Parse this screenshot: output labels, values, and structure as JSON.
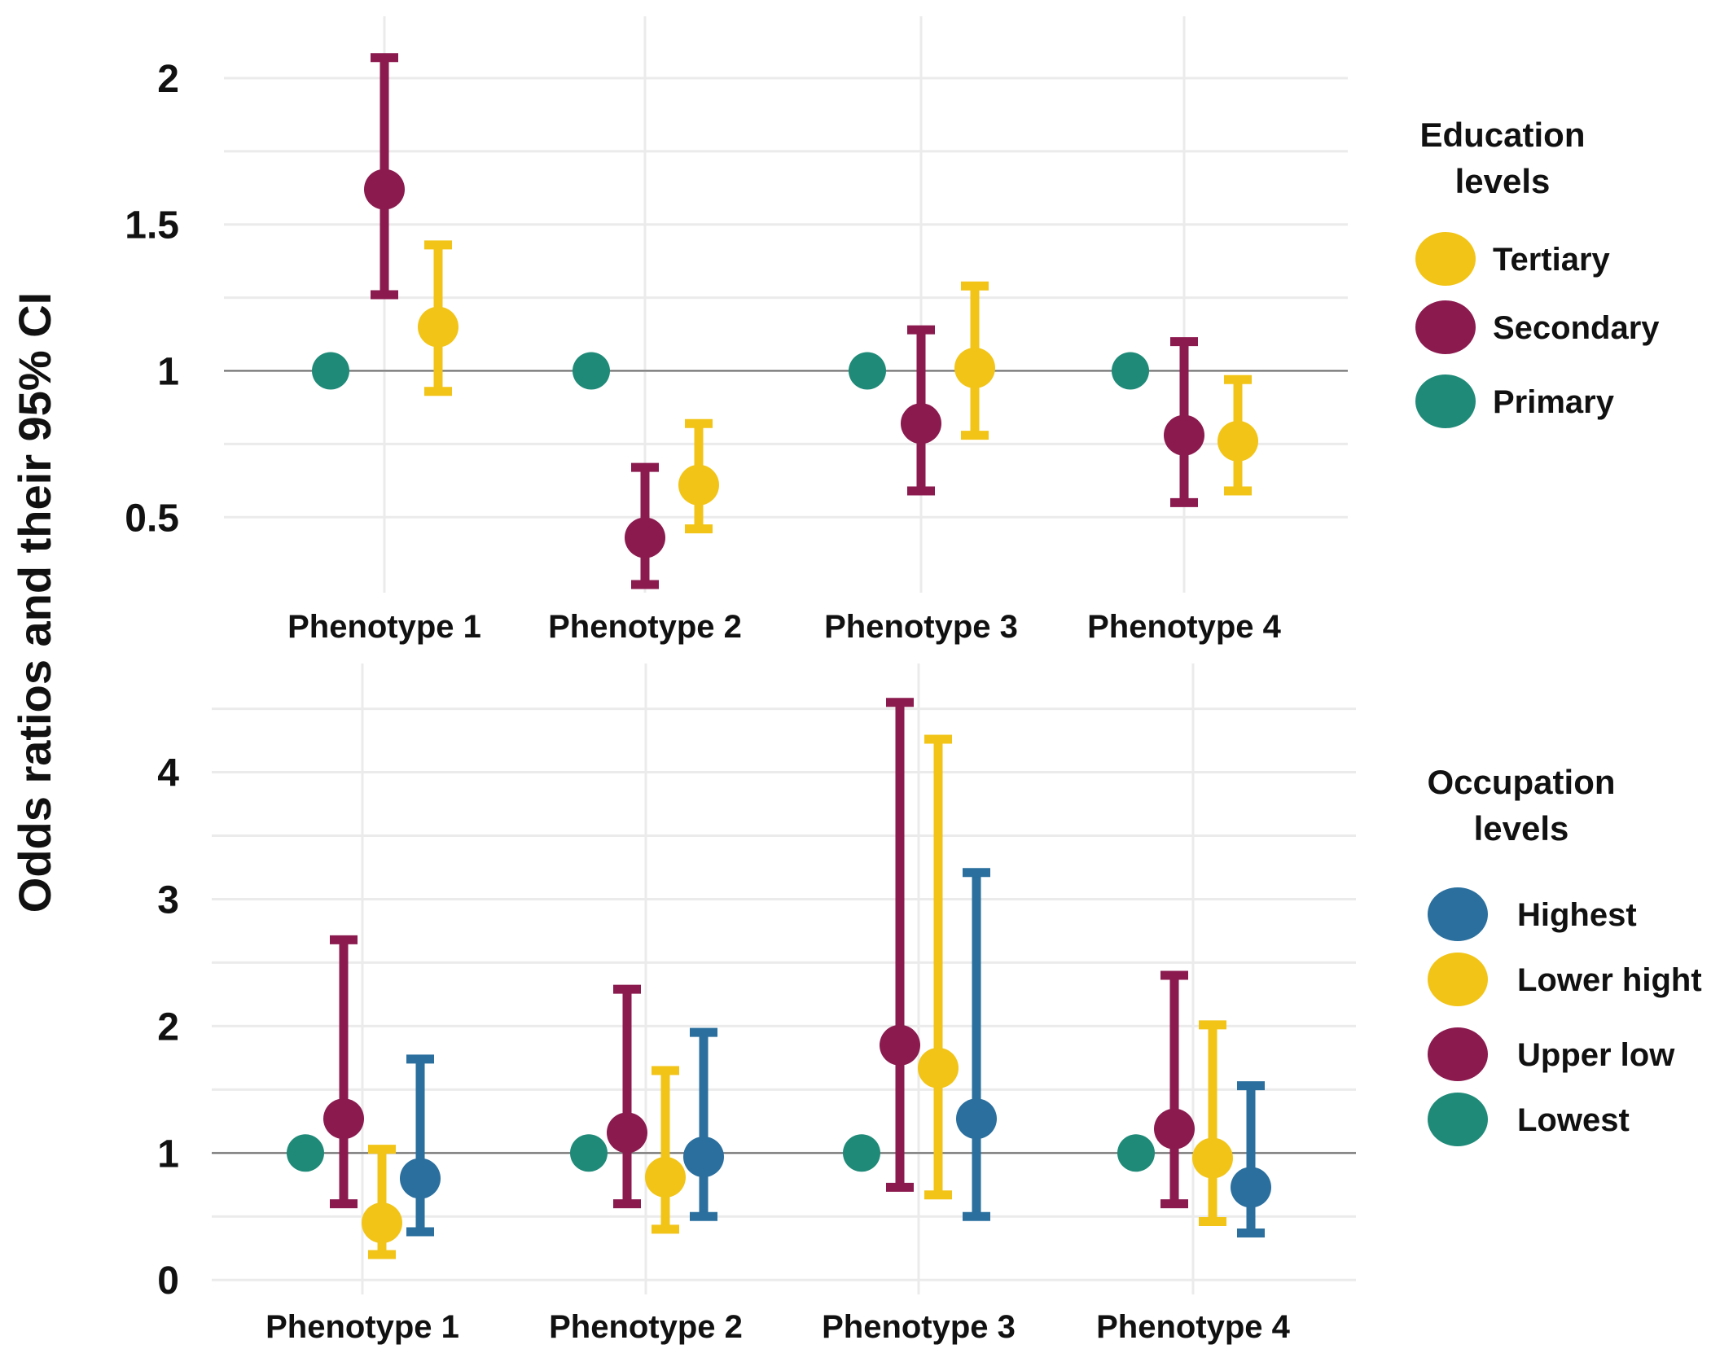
{
  "colors": {
    "primary_lowest": "#1f8a78",
    "secondary_upper_low": "#8b1a4f",
    "tertiary_lower_hight": "#f2c417",
    "highest": "#2a6f9e"
  },
  "ylabel": "Odds ratios and their  95% CI",
  "chart_data": [
    {
      "type": "errorbar",
      "categories": [
        "Phenotype 1",
        "Phenotype 2",
        "Phenotype 3",
        "Phenotype 4"
      ],
      "ylim": [
        0.27,
        2.1
      ],
      "yticks": [
        0.5,
        1,
        1.5,
        2
      ],
      "ytick_labels": [
        "0.5",
        "1",
        "1.5",
        "2"
      ],
      "reference_line": 1,
      "grid": true,
      "legend": {
        "title_lines": [
          "Education",
          "levels"
        ],
        "placement": "right",
        "items": [
          {
            "label": "Tertiary",
            "color": "#f2c417"
          },
          {
            "label": "Secondary",
            "color": "#8b1a4f"
          },
          {
            "label": "Primary",
            "color": "#1f8a78"
          }
        ]
      },
      "series": [
        {
          "name": "Primary",
          "color": "#1f8a78",
          "estimate": [
            1,
            1,
            1,
            1
          ],
          "lower": [
            null,
            null,
            null,
            null
          ],
          "upper": [
            null,
            null,
            null,
            null
          ]
        },
        {
          "name": "Secondary",
          "color": "#8b1a4f",
          "estimate": [
            1.62,
            0.43,
            0.82,
            0.78
          ],
          "lower": [
            1.26,
            0.27,
            0.59,
            0.55
          ],
          "upper": [
            2.07,
            0.67,
            1.14,
            1.1
          ]
        },
        {
          "name": "Tertiary",
          "color": "#f2c417",
          "estimate": [
            1.15,
            0.61,
            1.01,
            0.76
          ],
          "lower": [
            0.93,
            0.46,
            0.78,
            0.59
          ],
          "upper": [
            1.43,
            0.82,
            1.29,
            0.97
          ]
        }
      ]
    },
    {
      "type": "errorbar",
      "categories": [
        "Phenotype 1",
        "Phenotype 2",
        "Phenotype 3",
        "Phenotype 4"
      ],
      "ylim": [
        -0.05,
        4.6
      ],
      "yticks": [
        0,
        1,
        2,
        3,
        4
      ],
      "ytick_labels": [
        "0",
        "1",
        "2",
        "3",
        "4"
      ],
      "reference_line": 1,
      "grid": true,
      "legend": {
        "title_lines": [
          "Occupation",
          "levels"
        ],
        "placement": "right",
        "items": [
          {
            "label": "Highest",
            "color": "#2a6f9e"
          },
          {
            "label": "Lower hight",
            "color": "#f2c417"
          },
          {
            "label": "Upper low",
            "color": "#8b1a4f"
          },
          {
            "label": "Lowest",
            "color": "#1f8a78"
          }
        ]
      },
      "series": [
        {
          "name": "Lowest",
          "color": "#1f8a78",
          "estimate": [
            1,
            1,
            1,
            1
          ],
          "lower": [
            null,
            null,
            null,
            null
          ],
          "upper": [
            null,
            null,
            null,
            null
          ]
        },
        {
          "name": "Upper low",
          "color": "#8b1a4f",
          "estimate": [
            1.27,
            1.16,
            1.85,
            1.19
          ],
          "lower": [
            0.6,
            0.6,
            0.73,
            0.6
          ],
          "upper": [
            2.68,
            2.29,
            4.55,
            2.4
          ]
        },
        {
          "name": "Lower hight",
          "color": "#f2c417",
          "estimate": [
            0.45,
            0.81,
            1.67,
            0.96
          ],
          "lower": [
            0.2,
            0.4,
            0.67,
            0.46
          ],
          "upper": [
            1.03,
            1.65,
            4.26,
            2.01
          ]
        },
        {
          "name": "Highest",
          "color": "#2a6f9e",
          "estimate": [
            0.8,
            0.97,
            1.27,
            0.73
          ],
          "lower": [
            0.38,
            0.5,
            0.5,
            0.37
          ],
          "upper": [
            1.74,
            1.95,
            3.21,
            1.53
          ]
        }
      ]
    }
  ]
}
